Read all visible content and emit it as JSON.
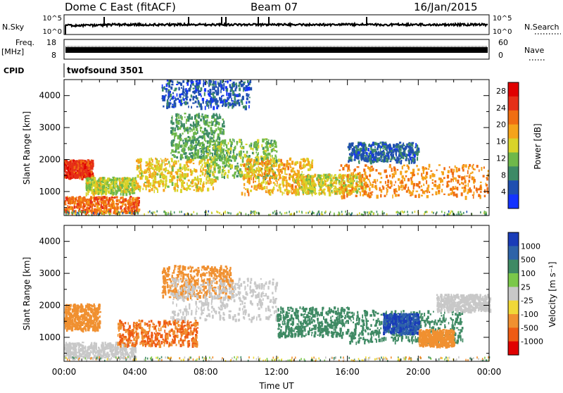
{
  "header": {
    "station": "Dome C East (fitACF)",
    "beam": "Beam 07",
    "date": "16/Jan/2015"
  },
  "strips": {
    "nsky_label": "N.Sky",
    "nsky_ticks": [
      "10^5",
      "10^0"
    ],
    "nsearch_label": "N.Search",
    "nsearch_ticks": [
      "10^5",
      "10^0"
    ],
    "freq_label_1": "Freq.",
    "freq_label_2": "[MHz]",
    "freq_ticks": [
      "18",
      "8"
    ],
    "nave_label": "Nave",
    "nave_ticks": [
      "60",
      "0"
    ],
    "cpid_label": "CPID",
    "cpid_value": "twofsound 3501"
  },
  "colors": {
    "power_scale": [
      "#1433ff",
      "#1f4fb0",
      "#3d8a66",
      "#6fb84a",
      "#d9d32a",
      "#f5a31a",
      "#f06e12",
      "#e63018",
      "#e00000"
    ],
    "velocity_scale": [
      "#1a3cb8",
      "#2e63a8",
      "#3f8a64",
      "#7bc84a",
      "#c8c8c8",
      "#f0d838",
      "#f09030",
      "#ee5b14",
      "#e00000"
    ]
  },
  "chart_data": [
    {
      "type": "heatmap",
      "panel": "power",
      "xlabel": "",
      "ylabel": "Slant Range [km]",
      "x_ticks": [
        "00:00",
        "04:00",
        "08:00",
        "12:00",
        "16:00",
        "20:00",
        "00:00"
      ],
      "y_ticks": [
        "1000",
        "2000",
        "3000",
        "4000"
      ],
      "ylim": [
        250,
        4500
      ],
      "colorbar_label": "Power [dB]",
      "colorbar_ticks": [
        "4",
        "8",
        "12",
        "16",
        "20",
        "24",
        "28"
      ],
      "colorbar_range": [
        0,
        30
      ],
      "regions": [
        {
          "t": [
            0.0,
            1.6
          ],
          "r": [
            1400,
            1950
          ],
          "v": 25
        },
        {
          "t": [
            0.0,
            4.2
          ],
          "r": [
            300,
            800
          ],
          "v": 22
        },
        {
          "t": [
            1.2,
            4.0
          ],
          "r": [
            900,
            1400
          ],
          "v": 14
        },
        {
          "t": [
            4.0,
            8.5
          ],
          "r": [
            1000,
            2000
          ],
          "v": 16
        },
        {
          "t": [
            6.0,
            9.0
          ],
          "r": [
            2000,
            3400
          ],
          "v": 10
        },
        {
          "t": [
            8.0,
            12.0
          ],
          "r": [
            1400,
            2600
          ],
          "v": 12
        },
        {
          "t": [
            10.0,
            14.0
          ],
          "r": [
            900,
            2000
          ],
          "v": 18
        },
        {
          "t": [
            13.0,
            17.0
          ],
          "r": [
            900,
            1500
          ],
          "v": 15
        },
        {
          "t": [
            15.5,
            24.0
          ],
          "r": [
            800,
            1800
          ],
          "v": 20
        },
        {
          "t": [
            16.0,
            20.0
          ],
          "r": [
            1900,
            2500
          ],
          "v": 6
        },
        {
          "t": [
            5.5,
            10.5
          ],
          "r": [
            3600,
            4450
          ],
          "v": 5
        }
      ]
    },
    {
      "type": "heatmap",
      "panel": "velocity",
      "xlabel": "Time UT",
      "ylabel": "Slant Range [km]",
      "x_ticks": [
        "00:00",
        "04:00",
        "08:00",
        "12:00",
        "16:00",
        "20:00",
        "00:00"
      ],
      "y_ticks": [
        "1000",
        "2000",
        "3000",
        "4000"
      ],
      "ylim": [
        250,
        4500
      ],
      "colorbar_label": "Velocity [m s⁻¹]",
      "colorbar_ticks": [
        "1000",
        "500",
        "100",
        "25",
        "-25",
        "-100",
        "-500",
        "-1000"
      ],
      "regions": [
        {
          "t": [
            0.0,
            4.0
          ],
          "r": [
            300,
            800
          ],
          "v": 0.5
        },
        {
          "t": [
            0.0,
            2.0
          ],
          "r": [
            1200,
            2000
          ],
          "v": -150
        },
        {
          "t": [
            3.0,
            7.5
          ],
          "r": [
            700,
            1500
          ],
          "v": -300
        },
        {
          "t": [
            5.5,
            9.5
          ],
          "r": [
            2200,
            3200
          ],
          "v": -200
        },
        {
          "t": [
            6.0,
            12.0
          ],
          "r": [
            1500,
            2800
          ],
          "v": 0
        },
        {
          "t": [
            12.0,
            16.0
          ],
          "r": [
            1000,
            1900
          ],
          "v": 150
        },
        {
          "t": [
            16.0,
            22.5
          ],
          "r": [
            800,
            1800
          ],
          "v": 200
        },
        {
          "t": [
            18.0,
            20.0
          ],
          "r": [
            1100,
            1700
          ],
          "v": 800
        },
        {
          "t": [
            20.0,
            22.0
          ],
          "r": [
            700,
            1200
          ],
          "v": -200
        },
        {
          "t": [
            21.0,
            24.0
          ],
          "r": [
            1800,
            2300
          ],
          "v": 0
        }
      ]
    }
  ]
}
